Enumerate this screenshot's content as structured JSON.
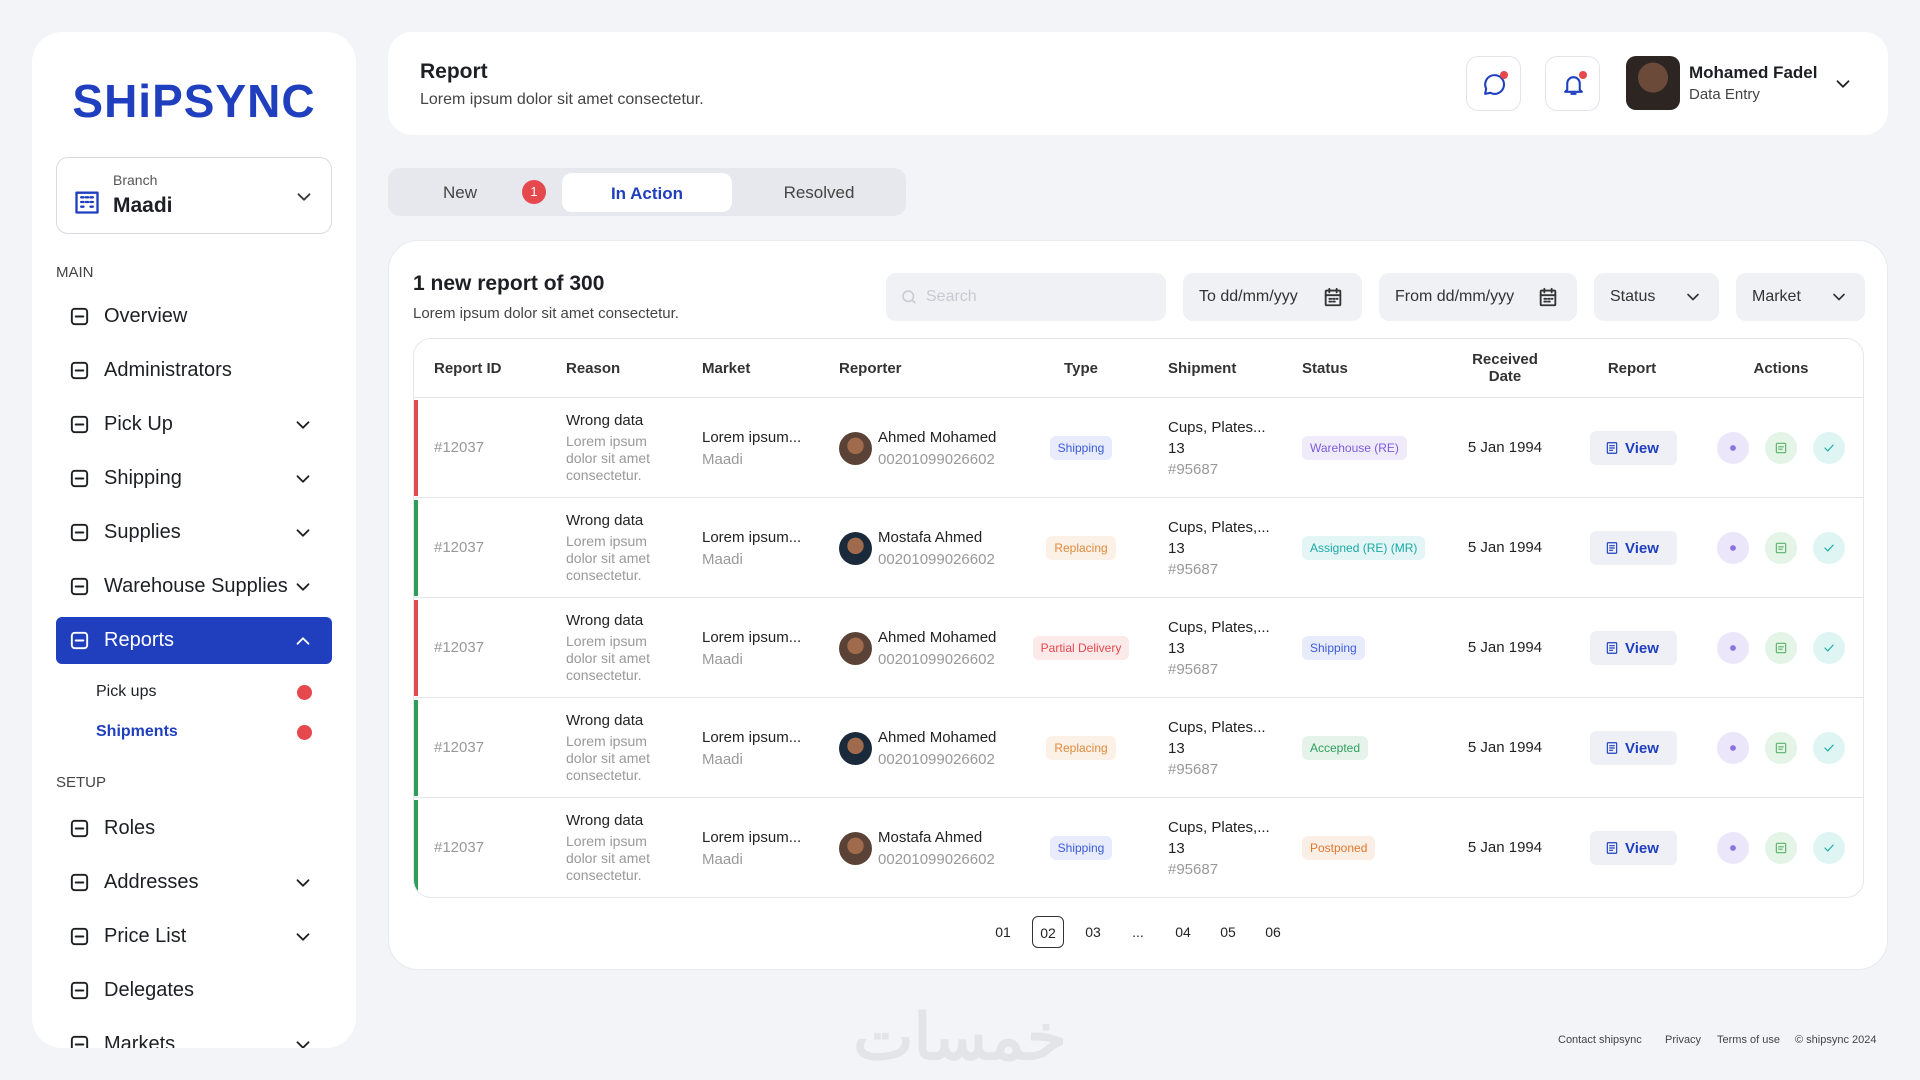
{
  "brand": "SHiPSYNC",
  "branch": {
    "label": "Branch",
    "value": "Maadi"
  },
  "nav": {
    "main_heading": "MAIN",
    "main": [
      {
        "label": "Overview",
        "submenu": false
      },
      {
        "label": "Administrators",
        "submenu": false
      },
      {
        "label": "Pick Up",
        "submenu": true
      },
      {
        "label": "Shipping",
        "submenu": true
      },
      {
        "label": "Supplies",
        "submenu": true
      },
      {
        "label": "Warehouse Supplies",
        "submenu": true
      },
      {
        "label": "Reports",
        "submenu": true,
        "active": true
      }
    ],
    "sub": [
      {
        "label": "Pick ups",
        "alert": true
      },
      {
        "label": "Shipments",
        "alert": true,
        "active": true
      }
    ],
    "setup_heading": "SETUP",
    "setup": [
      {
        "label": "Roles",
        "submenu": false
      },
      {
        "label": "Addresses",
        "submenu": true
      },
      {
        "label": "Price List",
        "submenu": true
      },
      {
        "label": "Delegates",
        "submenu": false
      },
      {
        "label": "Markets",
        "submenu": true
      }
    ]
  },
  "header": {
    "title": "Report",
    "subtitle": "Lorem ipsum dolor sit amet consectetur.",
    "user_name": "Mohamed Fadel",
    "user_role": "Data Entry"
  },
  "tabs": [
    {
      "label": "New",
      "badge": "1"
    },
    {
      "label": "In Action",
      "active": true
    },
    {
      "label": "Resolved"
    }
  ],
  "panel": {
    "title": "1 new report of 300",
    "subtitle": "Lorem ipsum dolor sit amet consectetur.",
    "search": "Search",
    "to": "To dd/mm/yyy",
    "from": "From dd/mm/yyy",
    "status": "Status",
    "market": "Market"
  },
  "table": {
    "columns": [
      "Report ID",
      "Reason",
      "Market",
      "Reporter",
      "Type",
      "Shipment",
      "Status",
      "Received Date",
      "Report",
      "Actions"
    ],
    "rows": [
      {
        "id": "#12037",
        "reason": "Wrong data",
        "reason_detail": "Lorem ipsum dolor sit amet consectetur.",
        "market": "Lorem ipsum...",
        "area": "Maadi",
        "reporter": "Ahmed Mohamed",
        "phone": "00201099026602",
        "type": "Shipping",
        "type_color": "#3b5bdb",
        "shipment": "Cups, Plates...",
        "qty": "13",
        "shipment_id": "#95687",
        "status": "Warehouse (RE)",
        "status_color": "#7c5cdb",
        "date": "5 Jan 1994",
        "report": "View",
        "stripe": "#e5484d"
      },
      {
        "id": "#12037",
        "reason": "Wrong data",
        "reason_detail": "Lorem ipsum dolor sit amet consectetur.",
        "market": "Lorem ipsum...",
        "area": "Maadi",
        "reporter": "Mostafa Ahmed",
        "phone": "00201099026602",
        "type": "Replacing",
        "type_color": "#e08a3c",
        "shipment": "Cups, Plates,...",
        "qty": "13",
        "shipment_id": "#95687",
        "status": "Assigned (RE) (MR)",
        "status_color": "#1aaba8",
        "date": "5 Jan 1994",
        "report": "View",
        "stripe": "#2e9e5b"
      },
      {
        "id": "#12037",
        "reason": "Wrong data",
        "reason_detail": "Lorem ipsum dolor sit amet consectetur.",
        "market": "Lorem ipsum...",
        "area": "Maadi",
        "reporter": "Ahmed Mohamed",
        "phone": "00201099026602",
        "type": "Partial Delivery",
        "type_color": "#e5484d",
        "shipment": "Cups, Plates,...",
        "qty": "13",
        "shipment_id": "#95687",
        "status": "Shipping",
        "status_color": "#3b5bdb",
        "date": "5 Jan 1994",
        "report": "View",
        "stripe": "#e5484d"
      },
      {
        "id": "#12037",
        "reason": "Wrong data",
        "reason_detail": "Lorem ipsum dolor sit amet consectetur.",
        "market": "Lorem ipsum...",
        "area": "Maadi",
        "reporter": "Ahmed Mohamed",
        "phone": "00201099026602",
        "type": "Replacing",
        "type_color": "#e08a3c",
        "shipment": "Cups, Plates...",
        "qty": "13",
        "shipment_id": "#95687",
        "status": "Accepted",
        "status_color": "#2e9e5b",
        "date": "5 Jan 1994",
        "report": "View",
        "stripe": "#2e9e5b"
      },
      {
        "id": "#12037",
        "reason": "Wrong data",
        "reason_detail": "Lorem ipsum dolor sit amet consectetur.",
        "market": "Lorem ipsum...",
        "area": "Maadi",
        "reporter": "Mostafa Ahmed",
        "phone": "00201099026602",
        "type": "Shipping",
        "type_color": "#3b5bdb",
        "shipment": "Cups, Plates,...",
        "qty": "13",
        "shipment_id": "#95687",
        "status": "Postponed",
        "status_color": "#e0782c",
        "date": "5 Jan 1994",
        "report": "View",
        "stripe": "#2e9e5b"
      }
    ]
  },
  "pagination": {
    "pages": [
      "01",
      "02",
      "03",
      "...",
      "04",
      "05",
      "06"
    ],
    "current": 1
  },
  "watermark": "خمسات",
  "footer": [
    "Contact shipsync",
    "Privacy",
    "Terms of use",
    "© shipsync 2024"
  ]
}
